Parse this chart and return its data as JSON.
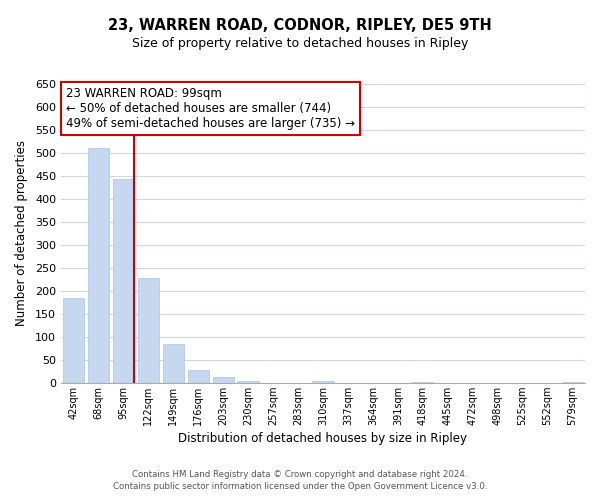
{
  "title": "23, WARREN ROAD, CODNOR, RIPLEY, DE5 9TH",
  "subtitle": "Size of property relative to detached houses in Ripley",
  "bar_labels": [
    "42sqm",
    "68sqm",
    "95sqm",
    "122sqm",
    "149sqm",
    "176sqm",
    "203sqm",
    "230sqm",
    "257sqm",
    "283sqm",
    "310sqm",
    "337sqm",
    "364sqm",
    "391sqm",
    "418sqm",
    "445sqm",
    "472sqm",
    "498sqm",
    "525sqm",
    "552sqm",
    "579sqm"
  ],
  "bar_values": [
    185,
    510,
    443,
    228,
    85,
    28,
    13,
    4,
    0,
    0,
    3,
    0,
    0,
    0,
    1,
    0,
    0,
    0,
    0,
    0,
    2
  ],
  "bar_color": "#c5d8f0",
  "bar_edge_color": "#aac4e0",
  "property_line_index": 2,
  "property_line_color": "#cc0000",
  "xlabel": "Distribution of detached houses by size in Ripley",
  "ylabel": "Number of detached properties",
  "ylim": [
    0,
    650
  ],
  "yticks": [
    0,
    50,
    100,
    150,
    200,
    250,
    300,
    350,
    400,
    450,
    500,
    550,
    600,
    650
  ],
  "annotation_title": "23 WARREN ROAD: 99sqm",
  "annotation_line1": "← 50% of detached houses are smaller (744)",
  "annotation_line2": "49% of semi-detached houses are larger (735) →",
  "annotation_box_color": "#ffffff",
  "annotation_box_edgecolor": "#cc0000",
  "footer1": "Contains HM Land Registry data © Crown copyright and database right 2024.",
  "footer2": "Contains public sector information licensed under the Open Government Licence v3.0.",
  "background_color": "#ffffff",
  "grid_color": "#c8d8e8"
}
